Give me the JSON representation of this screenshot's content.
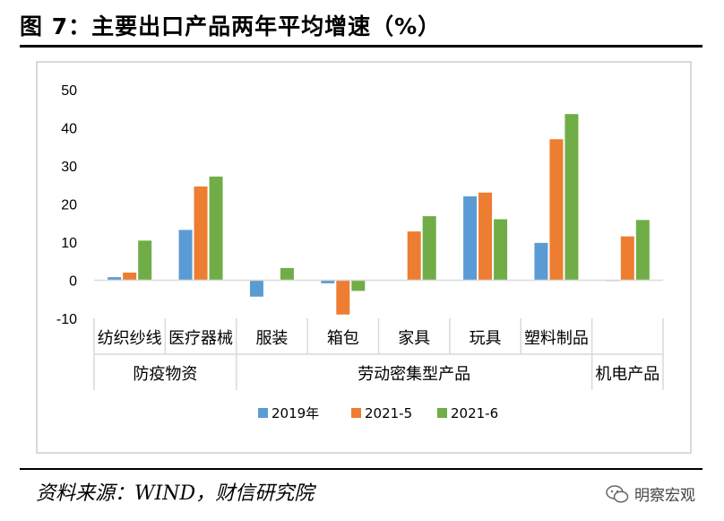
{
  "title": "图 7：主要出口产品两年平均增速（%）",
  "source": "资料来源：WIND，财信研究院",
  "watermark": "明察宏观",
  "colors": {
    "s2019": "#5b9bd5",
    "s2021_5": "#ed7d31",
    "s2021_6": "#70ad47",
    "axis": "#d9d9d9"
  },
  "chart_data": {
    "type": "bar",
    "ylim": [
      -10,
      50
    ],
    "yticks": [
      "-10",
      "0",
      "10",
      "20",
      "30",
      "40",
      "50"
    ],
    "categories": [
      "纺织纱线",
      "医疗器械",
      "服装",
      "箱包",
      "家具",
      "玩具",
      "塑料制品",
      ""
    ],
    "groups": [
      {
        "label": "防疫物资",
        "span": [
          0,
          1
        ]
      },
      {
        "label": "劳动密集型产品",
        "span": [
          2,
          6
        ]
      },
      {
        "label": "机电产品",
        "span": [
          7,
          7
        ]
      }
    ],
    "series": [
      {
        "name": "2019年",
        "values": [
          0.8,
          13.2,
          -4.3,
          -0.8,
          0,
          22,
          9.8,
          -0.2
        ]
      },
      {
        "name": "2021-5",
        "values": [
          2.0,
          24.6,
          0,
          -9.0,
          12.8,
          23,
          37,
          11.5
        ]
      },
      {
        "name": "2021-6",
        "values": [
          10.4,
          27.2,
          3.2,
          -2.8,
          16.8,
          16,
          43.6,
          15.8
        ]
      }
    ],
    "legend_position": "bottom",
    "grid": false
  }
}
